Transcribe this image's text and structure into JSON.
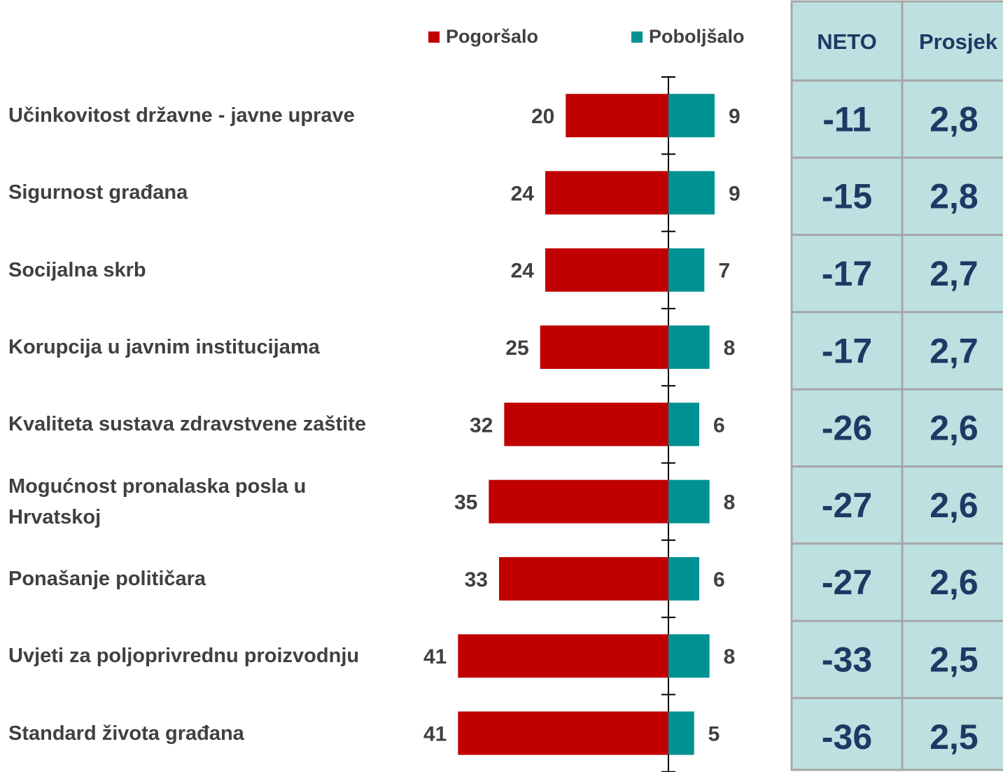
{
  "chart_data": {
    "type": "diverging-bar",
    "categories": [
      "Učinkovitost državne - javne uprave",
      "Sigurnost građana",
      "Socijalna skrb",
      "Korupcija u javnim institucijama",
      "Kvaliteta sustava zdravstvene zaštite",
      "Mogućnost pronalaska posla u\nHrvatskoj",
      "Ponašanje političara",
      "Uvjeti za poljoprivrednu proizvodnju",
      "Standard života građana"
    ],
    "series": [
      {
        "name": "Pogoršalo",
        "color": "#c00000",
        "values": [
          20,
          24,
          24,
          25,
          32,
          35,
          33,
          41,
          41
        ]
      },
      {
        "name": "Poboljšalo",
        "color": "#009193",
        "values": [
          9,
          9,
          7,
          8,
          6,
          8,
          6,
          8,
          5
        ]
      }
    ],
    "xlim": [
      -45,
      15
    ],
    "legend": "top"
  },
  "table": {
    "headers": [
      "NETO",
      "Prosjek"
    ],
    "rows": [
      [
        -11,
        "2,8"
      ],
      [
        -15,
        "2,8"
      ],
      [
        -17,
        "2,7"
      ],
      [
        -17,
        "2,7"
      ],
      [
        -26,
        "2,6"
      ],
      [
        -27,
        "2,6"
      ],
      [
        -27,
        "2,6"
      ],
      [
        -33,
        "2,5"
      ],
      [
        -36,
        "2,5"
      ]
    ]
  }
}
